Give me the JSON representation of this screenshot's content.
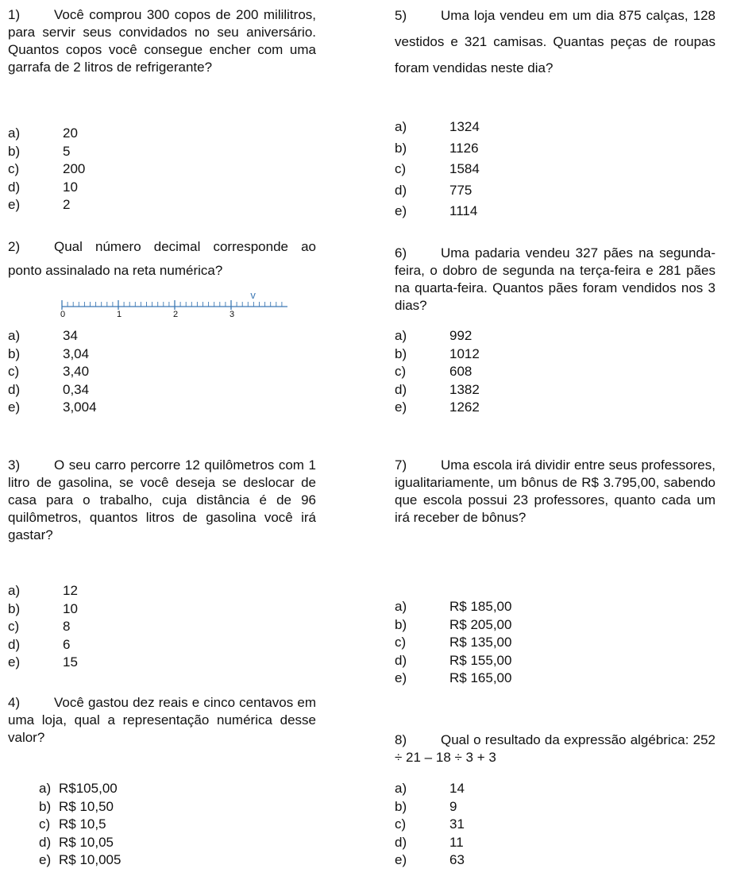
{
  "questions": [
    {
      "num": "1)",
      "text": "Você comprou 300 copos de 200 mililitros, para servir seus convidados no seu aniversário. Quantos copos você consegue encher com uma garrafa de 2 litros de refrigerante?",
      "options": [
        {
          "l": "a)",
          "v": "20"
        },
        {
          "l": "b)",
          "v": "5"
        },
        {
          "l": "c)",
          "v": "200"
        },
        {
          "l": "d)",
          "v": "10"
        },
        {
          "l": "e)",
          "v": "2"
        }
      ]
    },
    {
      "num": "2)",
      "text": "Qual número decimal corresponde ao ponto assinalado na reta numérica?",
      "number_line": {
        "labels": [
          "0",
          "1",
          "2",
          "3"
        ],
        "marker": "v"
      },
      "options": [
        {
          "l": "a)",
          "v": "34"
        },
        {
          "l": "b)",
          "v": "3,04"
        },
        {
          "l": "c)",
          "v": "3,40"
        },
        {
          "l": "d)",
          "v": "0,34"
        },
        {
          "l": "e)",
          "v": "3,004"
        }
      ]
    },
    {
      "num": "3)",
      "text": "O seu carro percorre 12 quilômetros com 1 litro de gasolina, se você deseja se deslocar de casa para o trabalho, cuja distância é de 96 quilômetros, quantos litros de gasolina você irá gastar?",
      "options": [
        {
          "l": "a)",
          "v": "12"
        },
        {
          "l": "b)",
          "v": "10"
        },
        {
          "l": "c)",
          "v": "8"
        },
        {
          "l": "d)",
          "v": "6"
        },
        {
          "l": "e)",
          "v": "15"
        }
      ]
    },
    {
      "num": "4)",
      "text": "Você gastou dez reais e cinco centavos em uma loja, qual a representação numérica desse valor?",
      "options": [
        {
          "l": "a)",
          "v": "R$105,00"
        },
        {
          "l": "b)",
          "v": "R$ 10,50"
        },
        {
          "l": "c)",
          "v": "R$ 10,5"
        },
        {
          "l": "d)",
          "v": "R$ 10,05"
        },
        {
          "l": "e)",
          "v": "R$ 10,005"
        }
      ]
    },
    {
      "num": "5)",
      "text": "Uma loja vendeu em um dia 875 calças, 128 vestidos e 321 camisas. Quantas peças de roupas foram vendidas neste dia?",
      "options": [
        {
          "l": "a)",
          "v": "1324"
        },
        {
          "l": "b)",
          "v": "1126"
        },
        {
          "l": "c)",
          "v": "1584"
        },
        {
          "l": "d)",
          "v": "775"
        },
        {
          "l": "e)",
          "v": "1114"
        }
      ]
    },
    {
      "num": "6)",
      "text": "Uma padaria vendeu 327 pães na segunda-feira, o dobro de segunda na terça-feira e 281 pães na quarta-feira. Quantos pães foram vendidos nos 3 dias?",
      "options": [
        {
          "l": "a)",
          "v": "992"
        },
        {
          "l": "b)",
          "v": "1012"
        },
        {
          "l": "c)",
          "v": "608"
        },
        {
          "l": "d)",
          "v": "1382"
        },
        {
          "l": "e)",
          "v": "1262"
        }
      ]
    },
    {
      "num": "7)",
      "text": "Uma escola irá dividir entre seus professores, igualitariamente, um bônus de R$ 3.795,00, sabendo que escola possui 23 professores, quanto cada um irá receber de bônus?",
      "options": [
        {
          "l": "a)",
          "v": "R$ 185,00"
        },
        {
          "l": "b)",
          "v": "R$ 205,00"
        },
        {
          "l": "c)",
          "v": "R$ 135,00"
        },
        {
          "l": "d)",
          "v": "R$ 155,00"
        },
        {
          "l": "e)",
          "v": "R$ 165,00"
        }
      ]
    },
    {
      "num": "8)",
      "text": "Qual o resultado da expressão algébrica: 252 ÷ 21 – 18 ÷ 3 + 3",
      "options": [
        {
          "l": "a)",
          "v": "14"
        },
        {
          "l": "b)",
          "v": "9"
        },
        {
          "l": "c)",
          "v": "31"
        },
        {
          "l": "d)",
          "v": "11"
        },
        {
          "l": "e)",
          "v": "63"
        }
      ]
    }
  ]
}
